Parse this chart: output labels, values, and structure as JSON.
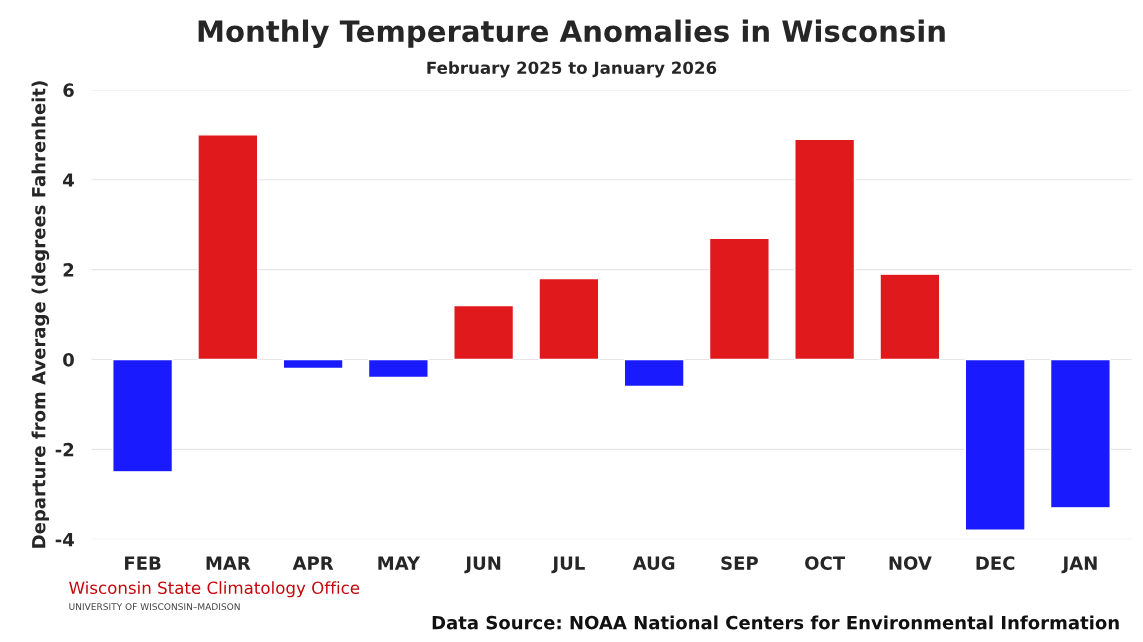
{
  "chart_data": {
    "type": "bar",
    "title": "Monthly Temperature Anomalies in Wisconsin",
    "subtitle": "February 2025 to January 2026",
    "ylabel": "Departure from Average (degrees Fahrenheit)",
    "categories": [
      "FEB",
      "MAR",
      "APR",
      "MAY",
      "JUN",
      "JUL",
      "AUG",
      "SEP",
      "OCT",
      "NOV",
      "DEC",
      "JAN"
    ],
    "values": [
      -2.5,
      5.0,
      -0.2,
      -0.4,
      1.2,
      1.8,
      -0.6,
      2.7,
      4.9,
      1.9,
      -3.8,
      -3.3
    ],
    "colors": [
      "#1a1aff",
      "#e0191c",
      "#1a1aff",
      "#1a1aff",
      "#e0191c",
      "#e0191c",
      "#1a1aff",
      "#e0191c",
      "#e0191c",
      "#e0191c",
      "#1a1aff",
      "#1a1aff"
    ],
    "ylim": [
      -4,
      6
    ],
    "yticks": [
      {
        "value": -4,
        "label": "-4"
      },
      {
        "value": -2,
        "label": "-2"
      },
      0,
      2,
      4,
      6
    ],
    "grid": "y",
    "annotations": [
      "Wisconsin State Climatology Office",
      "UNIVERSITY OF WISCONSIN–MADISON",
      "Data Source: NOAA National Centers for Environmental Information"
    ]
  }
}
